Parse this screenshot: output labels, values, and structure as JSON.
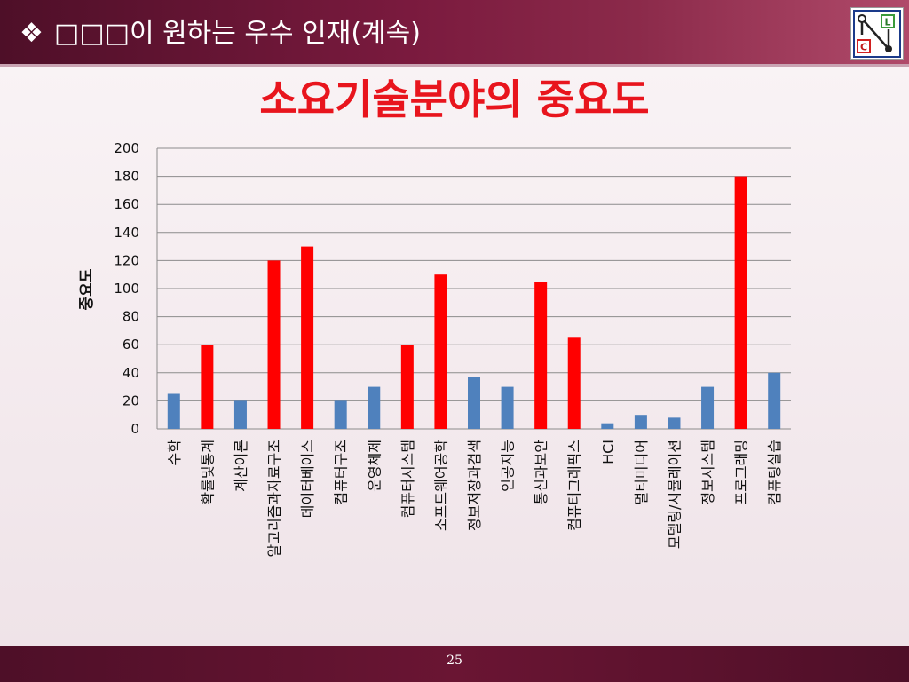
{
  "slide": {
    "header_bullet": "❖",
    "header_title": "□□□이 원하는 우수 인재(계속)",
    "page_number": "25",
    "logo_letters": [
      "L",
      "C"
    ]
  },
  "colors": {
    "important": "#ff0000",
    "normal": "#4f81bd",
    "title": "#e8151d",
    "header_bg": "#6a1533"
  },
  "chart_data": {
    "type": "bar",
    "title": "소요기술분야의 중요도",
    "xlabel": "",
    "ylabel": "중요도",
    "ylim": [
      0,
      200
    ],
    "yticks": [
      0,
      20,
      40,
      60,
      80,
      100,
      120,
      140,
      160,
      180,
      200
    ],
    "grid": true,
    "categories": [
      "수학",
      "확률및통계",
      "계산이론",
      "알고리즘과자료구조",
      "데이터베이스",
      "컴퓨터구조",
      "운영체제",
      "컴퓨터시스템",
      "소프트웨어공학",
      "정보저장과검색",
      "인공지능",
      "통신과보안",
      "컴퓨터그래픽스",
      "HCI",
      "멀티미디어",
      "모델링/시뮬레이션",
      "정보시스템",
      "프로그래밍",
      "컴퓨팅실습"
    ],
    "values": [
      25,
      60,
      20,
      120,
      130,
      20,
      30,
      60,
      110,
      37,
      30,
      105,
      65,
      4,
      10,
      8,
      30,
      180,
      40
    ],
    "highlight": [
      false,
      true,
      false,
      true,
      true,
      false,
      false,
      true,
      true,
      false,
      false,
      true,
      true,
      false,
      false,
      false,
      false,
      true,
      false
    ]
  }
}
